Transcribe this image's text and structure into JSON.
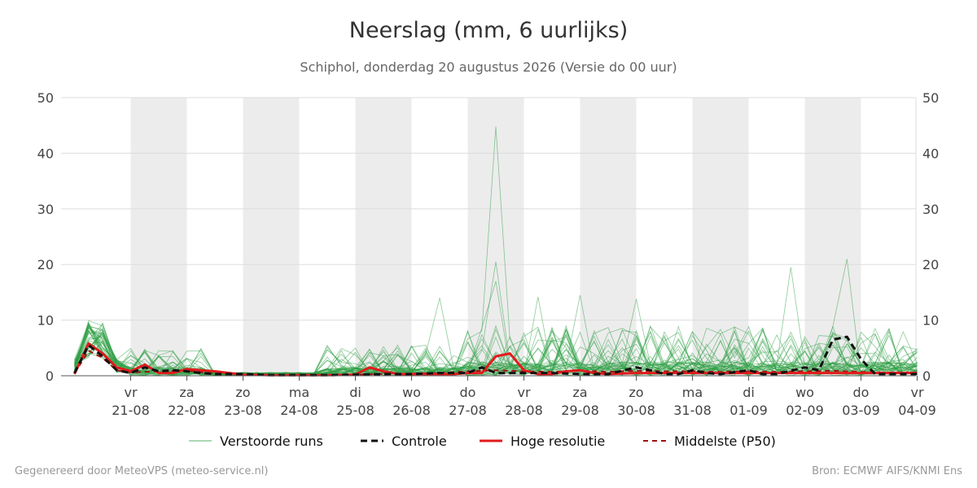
{
  "header": {
    "title": "Neerslag (mm, 6 uurlijks)",
    "subtitle": "Schiphol, donderdag 20 augustus 2026 (Versie do 00 uur)"
  },
  "footer": {
    "left": "Gegenereerd door MeteoVPS (meteo-service.nl)",
    "right": "Bron: ECMWF AIFS/KNMI Ens"
  },
  "legend": {
    "items": [
      {
        "key": "ens",
        "label": "Verstoorde runs"
      },
      {
        "key": "ctrl",
        "label": "Controle"
      },
      {
        "key": "hres",
        "label": "Hoge resolutie"
      },
      {
        "key": "p50",
        "label": "Middelste (P50)"
      }
    ]
  },
  "colors": {
    "ensemble": "#2e9e44",
    "control": "#111111",
    "hres": "#e31a1c",
    "p50": "#a01010",
    "weekend_band": "#ececec",
    "grid": "#dddddd",
    "axis_text": "#444444"
  },
  "chart_data": {
    "type": "line",
    "x_unit": "days since 20-08 00 UTC",
    "xlim": [
      0,
      15
    ],
    "ylim": [
      0,
      50
    ],
    "yticks": [
      0,
      10,
      20,
      30,
      40,
      50
    ],
    "grid": true,
    "legend_position": "bottom",
    "x_ticks": [
      {
        "day": "vr",
        "date": "21-08"
      },
      {
        "day": "za",
        "date": "22-08"
      },
      {
        "day": "zo",
        "date": "23-08"
      },
      {
        "day": "ma",
        "date": "24-08"
      },
      {
        "day": "di",
        "date": "25-08"
      },
      {
        "day": "wo",
        "date": "26-08"
      },
      {
        "day": "do",
        "date": "27-08"
      },
      {
        "day": "vr",
        "date": "28-08"
      },
      {
        "day": "za",
        "date": "29-08"
      },
      {
        "day": "zo",
        "date": "30-08"
      },
      {
        "day": "ma",
        "date": "31-08"
      },
      {
        "day": "di",
        "date": "01-09"
      },
      {
        "day": "wo",
        "date": "02-09"
      },
      {
        "day": "do",
        "date": "03-09"
      },
      {
        "day": "vr",
        "date": "04-09"
      }
    ],
    "shaded_days": [
      [
        1,
        2
      ],
      [
        3,
        4
      ],
      [
        5,
        6
      ],
      [
        7,
        8
      ],
      [
        9,
        10
      ],
      [
        11,
        12
      ],
      [
        13,
        14
      ]
    ],
    "series": [
      {
        "name": "Controle",
        "key": "ctrl",
        "style": "dashed",
        "x": [
          0,
          0.25,
          0.5,
          0.75,
          1,
          1.25,
          1.5,
          1.75,
          2,
          2.25,
          2.5,
          2.75,
          3,
          3.5,
          4,
          4.5,
          5,
          5.5,
          6,
          6.5,
          7,
          7.25,
          7.5,
          7.75,
          8,
          8.25,
          8.5,
          9,
          9.5,
          10,
          10.25,
          10.5,
          10.75,
          11,
          11.25,
          11.5,
          12,
          12.25,
          12.5,
          13,
          13.25,
          13.5,
          13.75,
          14,
          14.25,
          14.5,
          14.75,
          15
        ],
        "values": [
          0.5,
          5.5,
          3.5,
          1.0,
          0.5,
          1.5,
          0.8,
          1.0,
          0.8,
          0.5,
          0.3,
          0.3,
          0.3,
          0.1,
          0.1,
          0.1,
          0.2,
          0.3,
          0.3,
          0.5,
          0.5,
          1.5,
          0.5,
          0.5,
          0.5,
          0.5,
          0.5,
          0.3,
          0.3,
          1.5,
          1.0,
          0.3,
          0.3,
          1.0,
          0.5,
          0.3,
          1.0,
          0.3,
          0.3,
          1.5,
          1.0,
          6.5,
          7.0,
          3.0,
          0.3,
          0.3,
          0.3,
          0.3
        ]
      },
      {
        "name": "Hoge resolutie",
        "key": "hres",
        "style": "solid",
        "x": [
          0,
          0.25,
          0.5,
          0.75,
          1,
          1.25,
          1.5,
          1.75,
          2,
          2.25,
          2.5,
          2.75,
          3,
          3.5,
          4,
          4.5,
          5,
          5.25,
          5.5,
          5.75,
          6,
          6.25,
          6.5,
          6.75,
          7,
          7.25,
          7.5,
          7.75,
          8,
          8.25,
          8.5,
          8.75,
          9,
          9.25,
          9.5,
          10,
          10.5,
          11,
          11.5,
          12,
          12.5,
          13,
          13.5,
          14,
          14.5,
          15
        ],
        "values": [
          0.3,
          5.8,
          4.0,
          1.5,
          0.8,
          2.0,
          0.5,
          0.5,
          1.2,
          1.0,
          0.8,
          0.5,
          0.2,
          0.1,
          0.1,
          0.1,
          0.2,
          1.5,
          0.8,
          0.3,
          0.3,
          0.3,
          0.3,
          0.3,
          0.5,
          0.5,
          3.5,
          4.0,
          1.0,
          0.3,
          0.3,
          0.8,
          1.0,
          0.5,
          0.3,
          0.5,
          0.5,
          0.5,
          0.5,
          0.5,
          0.5,
          0.5,
          0.5,
          0.5,
          0.5,
          0.5
        ]
      },
      {
        "name": "Middelste (P50)",
        "key": "p50",
        "style": "dashed",
        "x": [
          0,
          0.25,
          0.5,
          0.75,
          1,
          1.5,
          2,
          2.5,
          3,
          3.5,
          4,
          4.5,
          5,
          5.5,
          6,
          6.5,
          7,
          7.5,
          8,
          8.5,
          9,
          9.5,
          10,
          10.5,
          11,
          11.5,
          12,
          12.5,
          13,
          13.5,
          14,
          14.5,
          15
        ],
        "values": [
          0.4,
          4.5,
          3.2,
          1.0,
          0.6,
          0.8,
          0.9,
          0.4,
          0.2,
          0.1,
          0.1,
          0.1,
          0.2,
          0.3,
          0.4,
          0.5,
          0.8,
          1.0,
          0.8,
          0.7,
          0.9,
          0.7,
          0.9,
          0.8,
          0.8,
          0.7,
          0.8,
          0.7,
          0.8,
          0.9,
          0.7,
          0.6,
          0.6
        ]
      }
    ]
  }
}
